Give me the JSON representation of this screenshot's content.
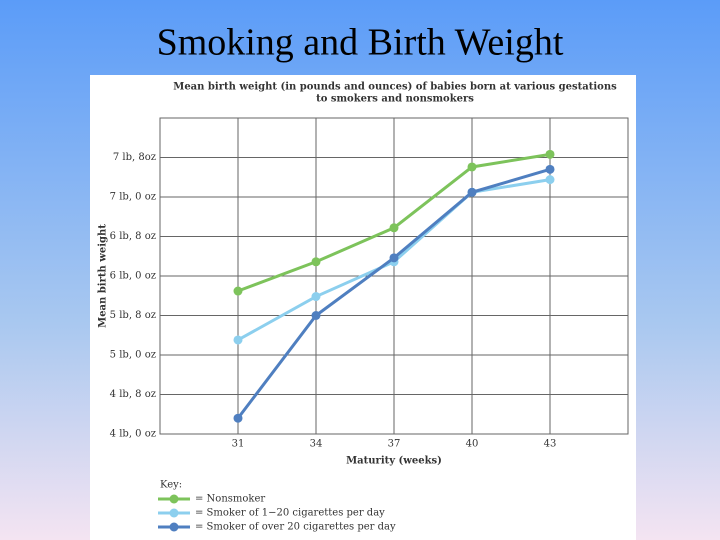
{
  "slide_title": "Smoking and Birth Weight",
  "chart_data": {
    "type": "line",
    "title": "Mean birth weight (in pounds and ounces) of babies born at various gestations",
    "subtitle": "to smokers and nonsmokers",
    "x_label": "Maturity (weeks)",
    "y_label": "Mean birth weight",
    "x": [
      31,
      34,
      37,
      40,
      43
    ],
    "xlim": [
      28,
      46
    ],
    "xticks": [
      31,
      34,
      37,
      40,
      43
    ],
    "ylim": [
      4,
      8
    ],
    "yticks": [
      {
        "value": 4,
        "label": "4 lb, 0 oz"
      },
      {
        "value": 4.5,
        "label": "4 lb, 8 oz"
      },
      {
        "value": 5,
        "label": "5 lb, 0 oz"
      },
      {
        "value": 5.5,
        "label": "5 lb, 8 oz"
      },
      {
        "value": 6,
        "label": "6 lb, 0 oz"
      },
      {
        "value": 6.5,
        "label": "6 lb, 8 oz"
      },
      {
        "value": 7,
        "label": "7 lb, 0 oz"
      },
      {
        "value": 7.5,
        "label": "7 lb, 8oz"
      }
    ],
    "grid": true,
    "legend_title": "Key:",
    "series": [
      {
        "name": "= Nonsmoker",
        "color": "#7dc35b",
        "values": [
          5.81,
          6.18,
          6.61,
          7.38,
          7.54
        ]
      },
      {
        "name": "= Smoker of 1−20 cigarettes per day",
        "color": "#8ccfee",
        "values": [
          5.19,
          5.74,
          6.18,
          7.06,
          7.22
        ]
      },
      {
        "name": "= Smoker of over 20 cigarettes per day",
        "color": "#4f7fc0",
        "values": [
          4.2,
          5.5,
          6.23,
          7.06,
          7.35
        ]
      }
    ]
  }
}
